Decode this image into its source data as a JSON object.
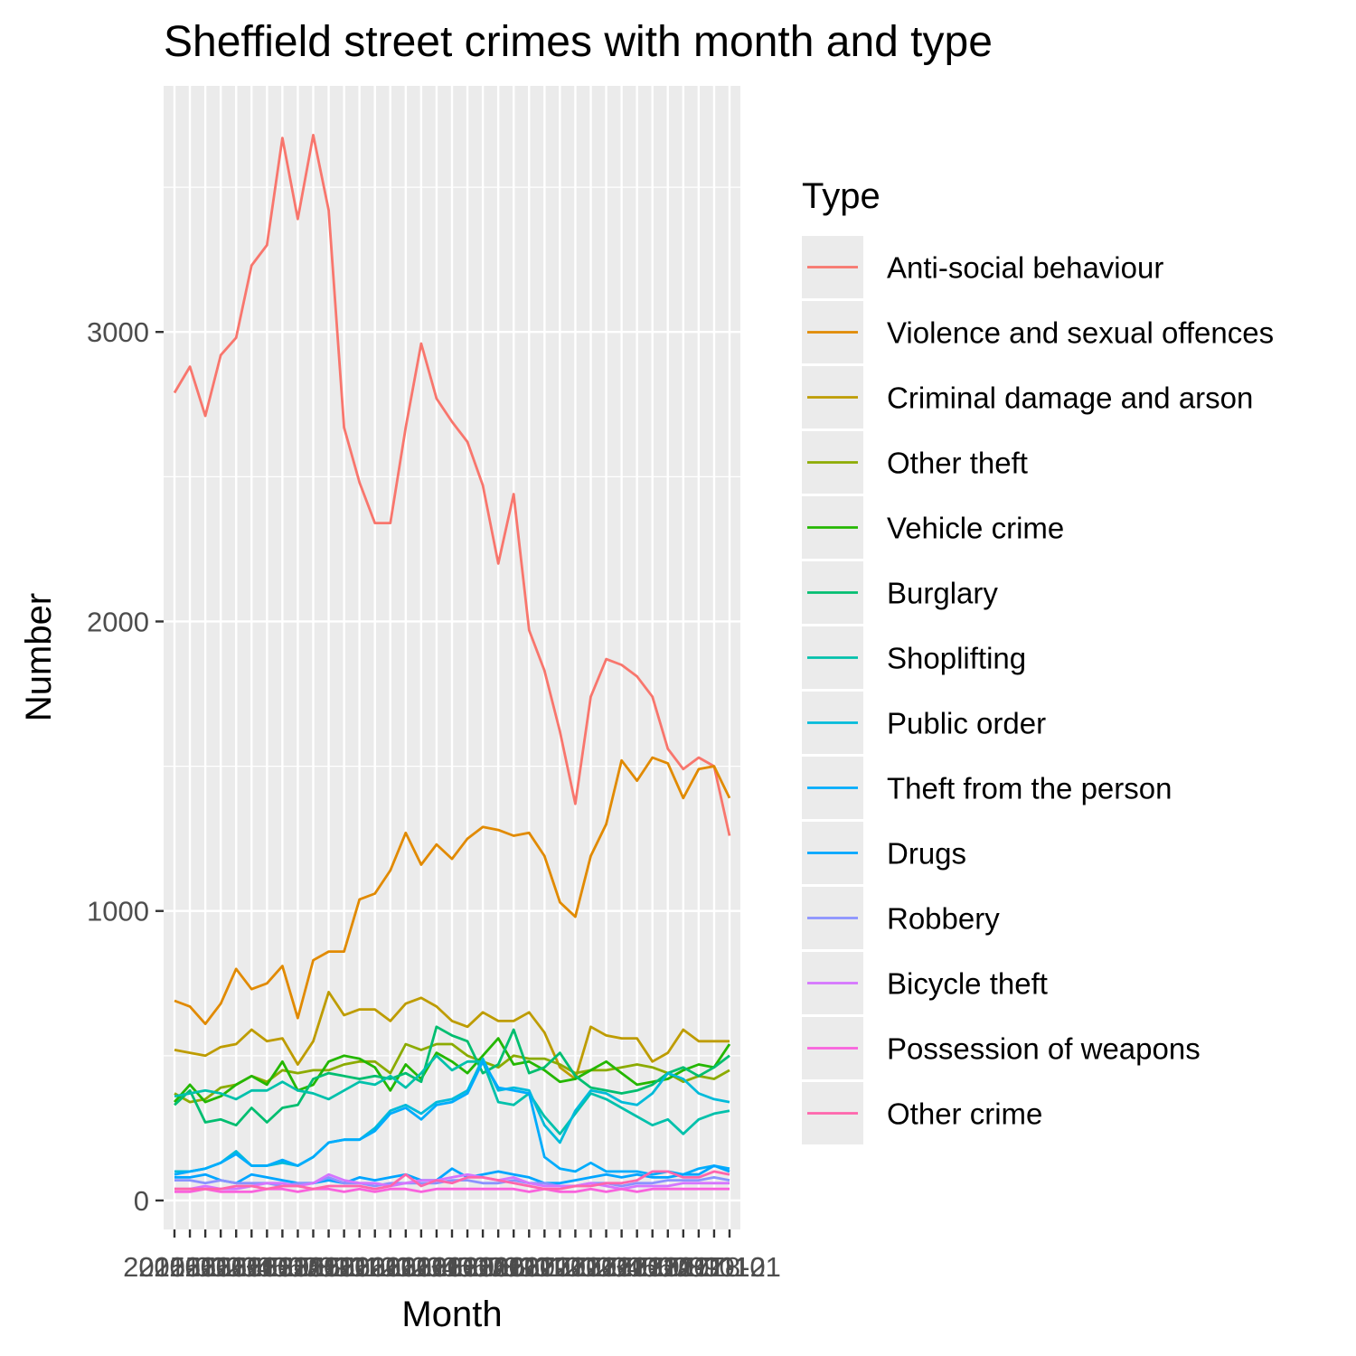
{
  "chart_data": {
    "type": "line",
    "title": "Sheffield street crimes with month and type",
    "xlabel": "Month",
    "ylabel": "Number",
    "ylim": [
      -100,
      3850
    ],
    "yticks": [
      0,
      1000,
      2000,
      3000
    ],
    "grid": true,
    "legend_position": "right",
    "legend_title": "Type",
    "x": [
      1,
      2,
      3,
      4,
      5,
      6,
      7,
      8,
      9,
      10,
      11,
      12,
      13,
      14,
      15,
      16,
      17,
      18,
      19,
      20,
      21,
      22,
      23,
      24,
      25,
      26,
      27,
      28,
      29,
      30,
      31,
      32,
      33,
      34,
      35,
      36,
      37
    ],
    "x_tick_labels": [
      "2015-01",
      "2015-02",
      "2015-03",
      "2015-04",
      "2015-05",
      "2015-06",
      "2015-07",
      "2015-08",
      "2015-09",
      "2015-10",
      "2015-11",
      "2015-12",
      "2016-01",
      "2016-02",
      "2016-03",
      "2016-04",
      "2016-05",
      "2016-06",
      "2016-07",
      "2016-08",
      "2016-09",
      "2016-10",
      "2016-11",
      "2016-12",
      "2017-01",
      "2017-02",
      "2017-03",
      "2017-04",
      "2017-05",
      "2017-06",
      "2017-07",
      "2017-08",
      "2017-09",
      "2017-10",
      "2017-11",
      "2017-12",
      "2018-01"
    ],
    "series": [
      {
        "name": "Anti-social behaviour",
        "color": "#F8766D",
        "values": [
          2790,
          2880,
          2710,
          2920,
          2980,
          3230,
          3300,
          3670,
          3390,
          3680,
          3420,
          2670,
          2480,
          2340,
          2340,
          2670,
          2960,
          2770,
          2690,
          2620,
          2470,
          2200,
          2440,
          1970,
          1830,
          1620,
          1370,
          1740,
          1870,
          1850,
          1810,
          1740,
          1560,
          1490,
          1530,
          1500,
          1260
        ]
      },
      {
        "name": "Violence and sexual offences",
        "color": "#E18A00",
        "values": [
          690,
          670,
          610,
          680,
          800,
          730,
          750,
          810,
          630,
          830,
          860,
          860,
          1040,
          1060,
          1140,
          1270,
          1160,
          1230,
          1180,
          1250,
          1290,
          1280,
          1260,
          1270,
          1190,
          1030,
          980,
          1190,
          1300,
          1520,
          1450,
          1530,
          1510,
          1390,
          1490,
          1500,
          1390
        ]
      },
      {
        "name": "Criminal damage and arson",
        "color": "#BE9C00",
        "values": [
          520,
          510,
          500,
          530,
          540,
          590,
          550,
          560,
          470,
          550,
          720,
          640,
          660,
          660,
          620,
          680,
          700,
          670,
          620,
          600,
          650,
          620,
          620,
          650,
          580,
          460,
          420,
          600,
          570,
          560,
          560,
          480,
          510,
          590,
          550,
          550,
          550
        ]
      },
      {
        "name": "Other theft",
        "color": "#8CAB00",
        "values": [
          370,
          340,
          350,
          390,
          400,
          430,
          410,
          450,
          440,
          450,
          450,
          470,
          480,
          480,
          440,
          540,
          520,
          540,
          540,
          500,
          480,
          460,
          500,
          490,
          490,
          470,
          440,
          450,
          450,
          460,
          470,
          460,
          440,
          410,
          430,
          420,
          450
        ]
      },
      {
        "name": "Vehicle crime",
        "color": "#24B700",
        "values": [
          340,
          400,
          340,
          360,
          400,
          430,
          400,
          480,
          380,
          400,
          480,
          500,
          490,
          460,
          380,
          470,
          420,
          510,
          480,
          440,
          500,
          560,
          470,
          480,
          450,
          410,
          420,
          450,
          480,
          440,
          400,
          410,
          420,
          450,
          470,
          460,
          540
        ]
      },
      {
        "name": "Burglary",
        "color": "#00BE70",
        "values": [
          330,
          380,
          270,
          280,
          260,
          320,
          270,
          320,
          330,
          420,
          440,
          430,
          420,
          430,
          420,
          440,
          410,
          600,
          570,
          550,
          440,
          470,
          590,
          440,
          460,
          510,
          430,
          390,
          380,
          370,
          380,
          400,
          440,
          460,
          430,
          460,
          500
        ]
      },
      {
        "name": "Shoplifting",
        "color": "#00C1AB",
        "values": [
          360,
          370,
          380,
          370,
          350,
          380,
          380,
          410,
          380,
          370,
          350,
          380,
          410,
          400,
          430,
          390,
          440,
          500,
          450,
          480,
          480,
          340,
          330,
          370,
          290,
          230,
          300,
          370,
          350,
          320,
          290,
          260,
          280,
          230,
          280,
          300,
          310
        ]
      },
      {
        "name": "Public order",
        "color": "#00BBDA",
        "values": [
          100,
          100,
          110,
          130,
          170,
          120,
          120,
          130,
          120,
          150,
          200,
          210,
          210,
          250,
          310,
          330,
          300,
          340,
          350,
          380,
          490,
          380,
          390,
          380,
          260,
          200,
          310,
          380,
          370,
          340,
          330,
          370,
          440,
          420,
          370,
          350,
          340
        ]
      },
      {
        "name": "Theft from the person",
        "color": "#00ACFC",
        "values": [
          90,
          100,
          110,
          130,
          160,
          120,
          120,
          140,
          120,
          150,
          200,
          210,
          210,
          240,
          300,
          320,
          280,
          330,
          340,
          370,
          480,
          390,
          380,
          370,
          150,
          110,
          100,
          130,
          100,
          100,
          100,
          90,
          100,
          90,
          110,
          120,
          110
        ]
      },
      {
        "name": "Drugs",
        "color": "#00A5FF",
        "values": [
          80,
          80,
          90,
          70,
          60,
          90,
          80,
          70,
          60,
          60,
          70,
          60,
          80,
          70,
          80,
          90,
          70,
          70,
          110,
          80,
          90,
          100,
          90,
          80,
          60,
          60,
          70,
          80,
          90,
          80,
          90,
          80,
          80,
          90,
          90,
          120,
          100
        ]
      },
      {
        "name": "Robbery",
        "color": "#8B93FF",
        "values": [
          70,
          70,
          60,
          70,
          60,
          60,
          60,
          50,
          60,
          60,
          80,
          60,
          60,
          50,
          60,
          60,
          60,
          60,
          70,
          70,
          60,
          60,
          70,
          60,
          60,
          50,
          50,
          60,
          60,
          50,
          60,
          60,
          70,
          70,
          70,
          80,
          70
        ]
      },
      {
        "name": "Bicycle theft",
        "color": "#D575FE",
        "values": [
          40,
          40,
          50,
          40,
          40,
          50,
          60,
          60,
          50,
          60,
          90,
          70,
          60,
          60,
          50,
          60,
          70,
          70,
          80,
          90,
          80,
          70,
          80,
          60,
          50,
          50,
          50,
          60,
          50,
          40,
          50,
          50,
          50,
          60,
          60,
          60,
          60
        ]
      },
      {
        "name": "Possession of weapons",
        "color": "#F962DD",
        "values": [
          30,
          30,
          40,
          30,
          30,
          30,
          40,
          40,
          30,
          40,
          40,
          30,
          40,
          30,
          40,
          40,
          30,
          40,
          40,
          40,
          40,
          40,
          40,
          30,
          40,
          30,
          30,
          40,
          30,
          40,
          30,
          40,
          40,
          40,
          40,
          40,
          40
        ]
      },
      {
        "name": "Other crime",
        "color": "#FF65AC",
        "values": [
          40,
          40,
          40,
          40,
          50,
          50,
          40,
          50,
          50,
          40,
          50,
          50,
          50,
          40,
          50,
          90,
          50,
          70,
          60,
          80,
          80,
          70,
          60,
          50,
          40,
          40,
          50,
          50,
          60,
          60,
          70,
          100,
          100,
          80,
          80,
          100,
          90
        ]
      }
    ]
  }
}
